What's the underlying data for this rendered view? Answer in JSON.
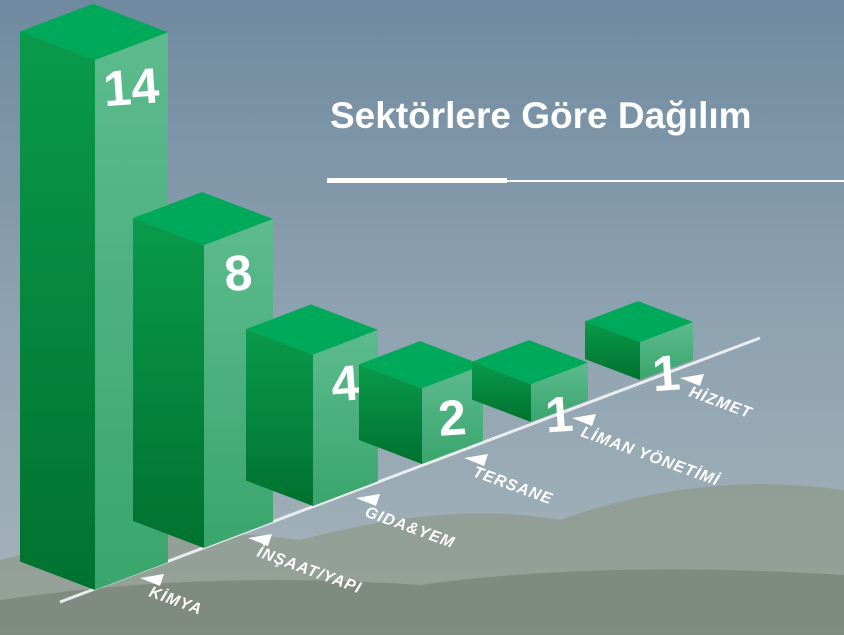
{
  "chart_data": {
    "type": "bar3d",
    "title": "Sektörlere Göre Dağılım",
    "categories": [
      "KİMYA",
      "İNŞAAT/YAPI",
      "GIDA&YEM",
      "TERSANE",
      "LİMAN YÖNETİMİ",
      "HİZMET"
    ],
    "values": [
      14,
      8,
      4,
      2,
      1,
      1
    ],
    "color": "#00a859"
  }
}
